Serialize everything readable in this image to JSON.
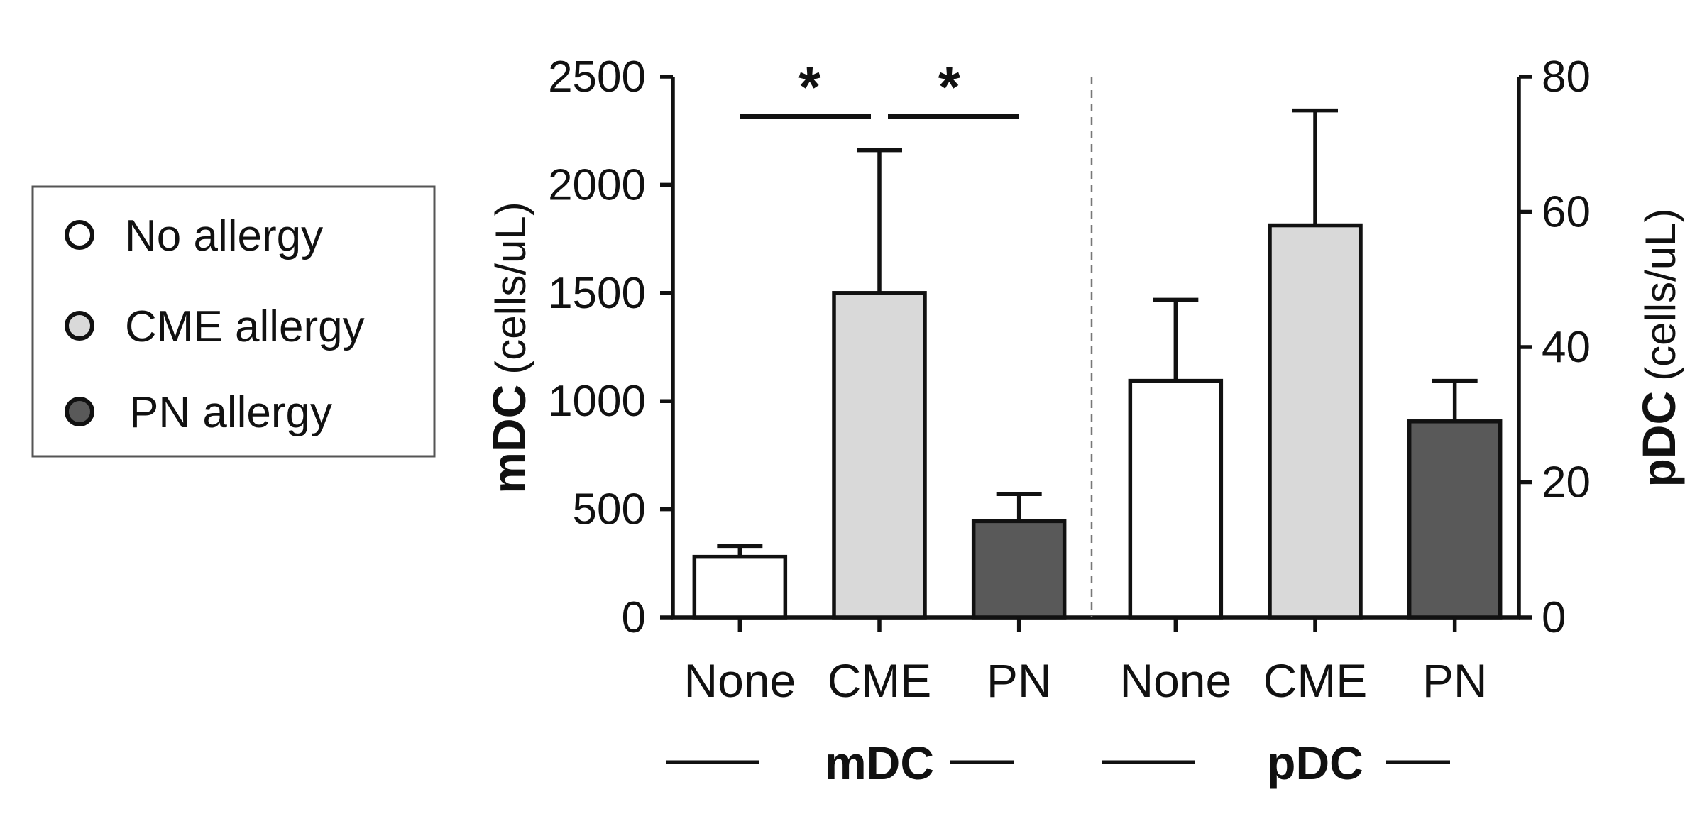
{
  "chart_data": {
    "type": "bar",
    "groups": [
      {
        "name": "mDC",
        "axis": "left",
        "categories": [
          "None",
          "CME",
          "PN"
        ]
      },
      {
        "name": "pDC",
        "axis": "right",
        "categories": [
          "None",
          "CME",
          "PN"
        ]
      }
    ],
    "series": [
      {
        "name": "No allergy",
        "color": "#ffffff",
        "mDC": {
          "mean": 280,
          "error": 50
        },
        "pDC": {
          "mean": 35,
          "error": 12
        }
      },
      {
        "name": "CME allergy",
        "color": "#d9d9d9",
        "mDC": {
          "mean": 1500,
          "error": 660
        },
        "pDC": {
          "mean": 58,
          "error": 17
        }
      },
      {
        "name": "PN allergy",
        "color": "#595959",
        "mDC": {
          "mean": 445,
          "error": 125
        },
        "pDC": {
          "mean": 29,
          "error": 6
        }
      }
    ],
    "left_axis": {
      "label": "mDC",
      "unit": "(cells/uL)",
      "ylim": [
        0,
        2500
      ],
      "ticks": [
        "0",
        "500",
        "1000",
        "1500",
        "2000",
        "2500"
      ]
    },
    "right_axis": {
      "label": "pDC",
      "unit": "(cells/uL)",
      "ylim": [
        0,
        80
      ],
      "ticks": [
        "0",
        "20",
        "40",
        "60",
        "80"
      ]
    },
    "significance": [
      {
        "group": "mDC",
        "from": "None",
        "to": "CME",
        "label": "*"
      },
      {
        "group": "mDC",
        "from": "CME",
        "to": "PN",
        "label": "*"
      }
    ],
    "legend": {
      "position": "left",
      "entries": [
        "No allergy",
        "CME allergy",
        "PN allergy"
      ]
    },
    "group_labels": [
      "mDC",
      "pDC"
    ],
    "divider": "dashed vertical line between groups",
    "grid": false,
    "error_bars": "upper only"
  }
}
